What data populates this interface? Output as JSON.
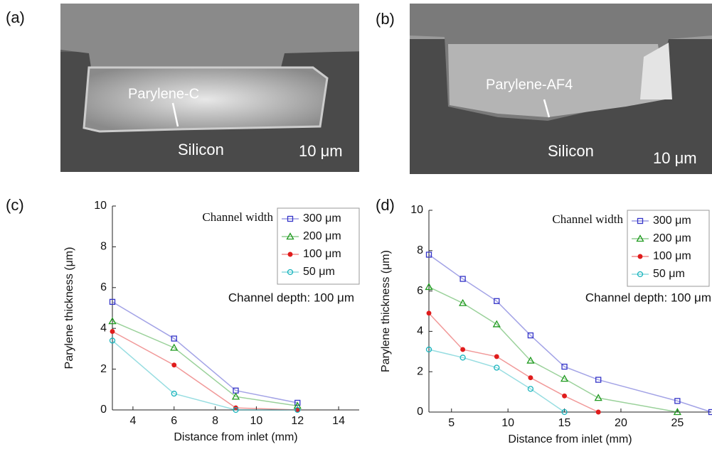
{
  "images": [
    {
      "label": "(a)",
      "coating": "Parylene-C",
      "substrate": "Silicon",
      "scale_bar": "10 μm"
    },
    {
      "label": "(b)",
      "coating": "Parylene-AF4",
      "substrate": "Silicon",
      "scale_bar": "10 μm"
    }
  ],
  "chart_data": [
    {
      "type": "line",
      "panel_label": "(c)",
      "xlabel": "Distance from inlet (mm)",
      "ylabel": "Parylene thickness (μm)",
      "legend_title": "Channel width",
      "annotation": "Channel depth: 100 μm",
      "x": [
        3,
        6,
        9,
        12
      ],
      "series": [
        {
          "name": "300 μm",
          "color": "#3434c8",
          "marker": "square",
          "values": [
            5.3,
            3.5,
            0.95,
            0.35
          ]
        },
        {
          "name": "200 μm",
          "color": "#1f9a1f",
          "marker": "triangle",
          "values": [
            4.35,
            3.05,
            0.65,
            0.2
          ]
        },
        {
          "name": "100 μm",
          "color": "#e01c1c",
          "marker": "star",
          "values": [
            3.85,
            2.2,
            0.1,
            0.0
          ]
        },
        {
          "name": "50 μm",
          "color": "#19b4bd",
          "marker": "circle",
          "values": [
            3.4,
            0.8,
            0.0,
            0.0
          ]
        }
      ],
      "xlim": [
        3,
        15
      ],
      "xticks": [
        4,
        6,
        8,
        10,
        12,
        14
      ],
      "ylim": [
        0,
        10
      ],
      "yticks": [
        0,
        2,
        4,
        6,
        8,
        10
      ]
    },
    {
      "type": "line",
      "panel_label": "(d)",
      "xlabel": "Distance from inlet (mm)",
      "ylabel": "Parylene thickness (μm)",
      "legend_title": "Channel width",
      "annotation": "Channel depth: 100 μm",
      "x": [
        3,
        6,
        9,
        12,
        15,
        18,
        25,
        28
      ],
      "series": [
        {
          "name": "300 μm",
          "color": "#3434c8",
          "marker": "square",
          "values": [
            7.8,
            6.6,
            5.5,
            3.8,
            2.25,
            1.6,
            0.55,
            0.0
          ]
        },
        {
          "name": "200 μm",
          "color": "#1f9a1f",
          "marker": "triangle",
          "values": [
            6.2,
            5.4,
            4.35,
            2.55,
            1.65,
            0.7,
            0.0,
            null
          ]
        },
        {
          "name": "100 μm",
          "color": "#e01c1c",
          "marker": "star",
          "values": [
            4.9,
            3.1,
            2.75,
            1.7,
            0.8,
            0.0,
            null,
            null
          ]
        },
        {
          "name": "50 μm",
          "color": "#19b4bd",
          "marker": "circle",
          "values": [
            3.1,
            2.7,
            2.2,
            1.15,
            0.0,
            null,
            null,
            null
          ]
        }
      ],
      "xlim": [
        3,
        28
      ],
      "xticks": [
        5,
        10,
        15,
        20,
        25
      ],
      "ylim": [
        0,
        10
      ],
      "yticks": [
        0,
        2,
        4,
        6,
        8,
        10
      ]
    }
  ]
}
